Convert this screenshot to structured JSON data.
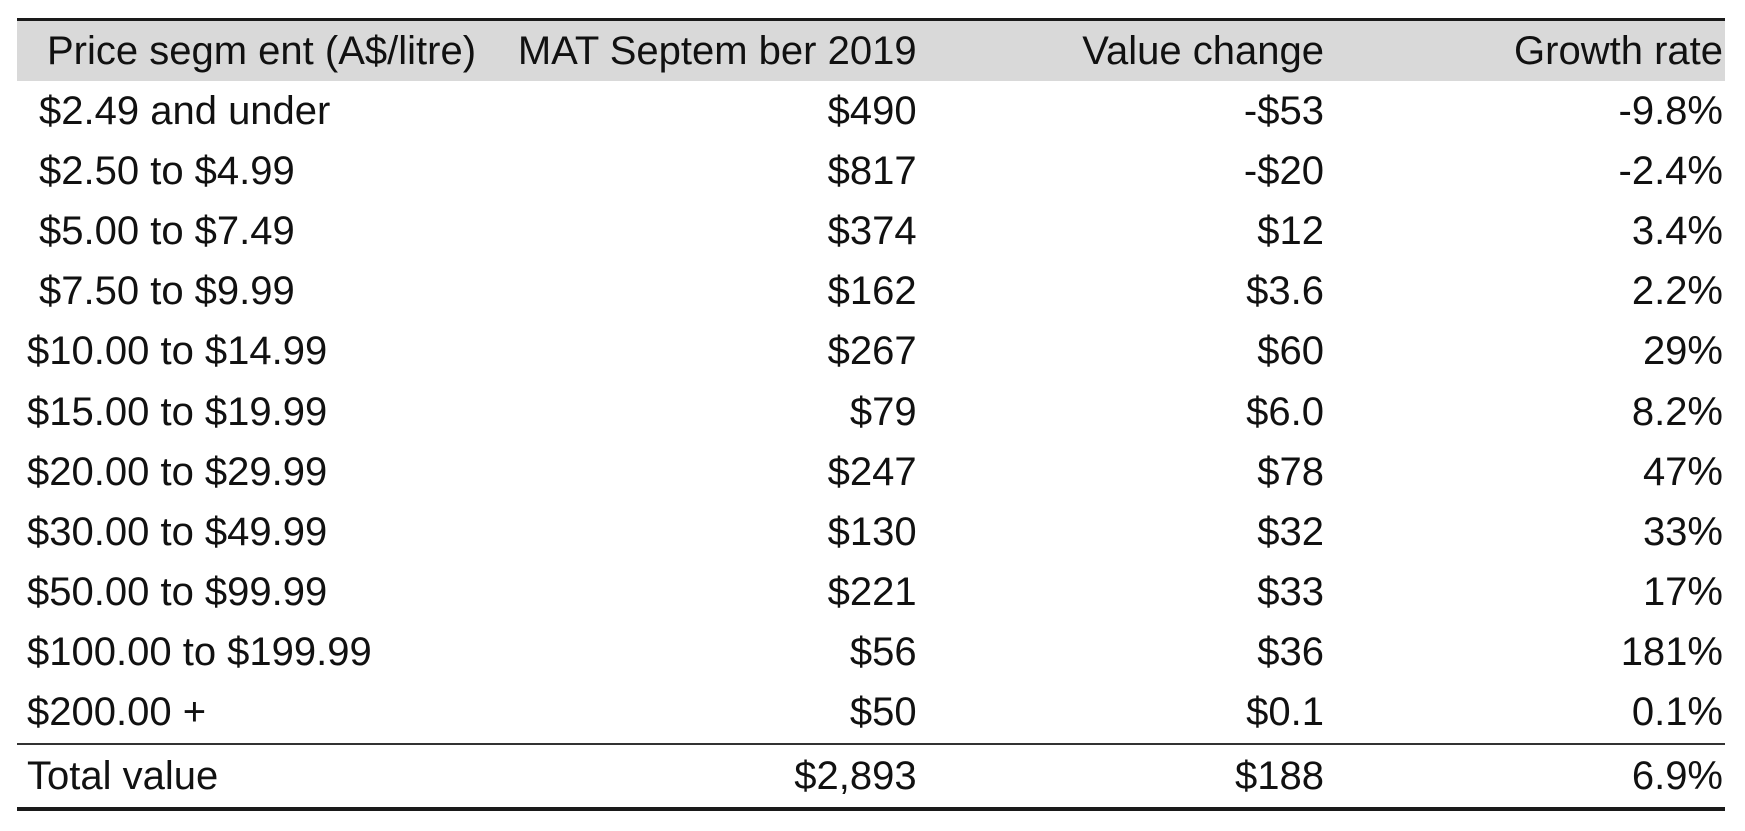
{
  "table": {
    "headers": [
      "Price segm ent (A$/litre)",
      "MAT Septem ber 2019",
      "Value change",
      "Growth rate"
    ],
    "rows": [
      {
        "segment": "$2.49 and under",
        "mat": "$490",
        "change": "-$53",
        "growth": "-9.8%"
      },
      {
        "segment": "$2.50 to $4.99",
        "mat": "$817",
        "change": "-$20",
        "growth": "-2.4%"
      },
      {
        "segment": "$5.00 to $7.49",
        "mat": "$374",
        "change": "$12",
        "growth": "3.4%"
      },
      {
        "segment": "$7.50 to $9.99",
        "mat": "$162",
        "change": "$3.6",
        "growth": "2.2%"
      },
      {
        "segment": "$10.00 to $14.99",
        "mat": "$267",
        "change": "$60",
        "growth": "29%"
      },
      {
        "segment": "$15.00 to $19.99",
        "mat": "$79",
        "change": "$6.0",
        "growth": "8.2%"
      },
      {
        "segment": "$20.00 to $29.99",
        "mat": "$247",
        "change": "$78",
        "growth": "47%"
      },
      {
        "segment": "$30.00 to $49.99",
        "mat": "$130",
        "change": "$32",
        "growth": "33%"
      },
      {
        "segment": "$50.00 to $99.99",
        "mat": "$221",
        "change": "$33",
        "growth": "17%"
      },
      {
        "segment": "$100.00 to $199.99",
        "mat": "$56",
        "change": "$36",
        "growth": "181%"
      },
      {
        "segment": "$200.00 +",
        "mat": "$50",
        "change": "$0.1",
        "growth": "0.1%"
      }
    ],
    "total": {
      "segment": "Total value",
      "mat": "$2,893",
      "change": "$188",
      "growth": "6.9%"
    }
  }
}
